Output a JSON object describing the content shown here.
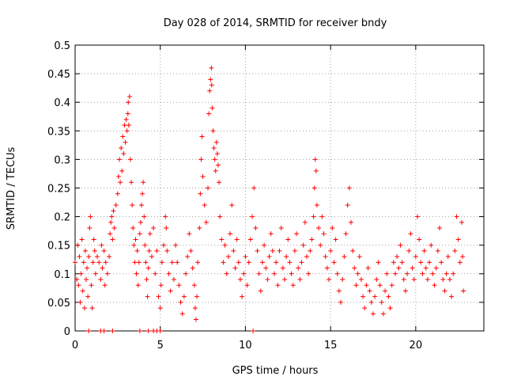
{
  "chart_data": {
    "type": "scatter",
    "title": "Day 028 of 2014, SRMTID for receiver bndy",
    "xlabel": "GPS time / hours",
    "ylabel": "SRMTID / TECUs",
    "xlim": [
      0,
      24
    ],
    "ylim": [
      0,
      0.5
    ],
    "x_ticks": [
      0,
      5,
      10,
      15,
      20
    ],
    "x_tick_labels": [
      "0",
      "5",
      "10",
      "15",
      "20"
    ],
    "y_ticks": [
      0,
      0.05,
      0.1,
      0.15,
      0.2,
      0.25,
      0.3,
      0.35,
      0.4,
      0.45,
      0.5
    ],
    "y_tick_labels": [
      "0",
      "0.05",
      "0.1",
      "0.15",
      "0.2",
      "0.25",
      "0.3",
      "0.35",
      "0.4",
      "0.45",
      "0.5"
    ],
    "grid": true,
    "marker": "plus",
    "series": [
      {
        "name": "SRMTID",
        "color": "#ff0000",
        "points": [
          [
            0.0,
            0.12
          ],
          [
            0.1,
            0.09
          ],
          [
            0.15,
            0.15
          ],
          [
            0.2,
            0.08
          ],
          [
            0.25,
            0.13
          ],
          [
            0.3,
            0.05
          ],
          [
            0.35,
            0.1
          ],
          [
            0.4,
            0.16
          ],
          [
            0.45,
            0.07
          ],
          [
            0.5,
            0.12
          ],
          [
            0.55,
            0.04
          ],
          [
            0.6,
            0.14
          ],
          [
            0.65,
            0.09
          ],
          [
            0.7,
            0.11
          ],
          [
            0.75,
            0.06
          ],
          [
            0.8,
            0.13
          ],
          [
            0.85,
            0.18
          ],
          [
            0.9,
            0.2
          ],
          [
            0.95,
            0.08
          ],
          [
            1.0,
            0.04
          ],
          [
            1.05,
            0.12
          ],
          [
            1.1,
            0.16
          ],
          [
            1.15,
            0.14
          ],
          [
            1.2,
            0.1
          ],
          [
            1.3,
            0.13
          ],
          [
            1.4,
            0.12
          ],
          [
            1.5,
            0.09
          ],
          [
            1.55,
            0.15
          ],
          [
            1.6,
            0.11
          ],
          [
            1.7,
            0.14
          ],
          [
            1.75,
            0.08
          ],
          [
            1.8,
            0.12
          ],
          [
            1.9,
            0.1
          ],
          [
            2.0,
            0.13
          ],
          [
            2.05,
            0.17
          ],
          [
            2.1,
            0.19
          ],
          [
            2.15,
            0.2
          ],
          [
            2.2,
            0.16
          ],
          [
            2.25,
            0.21
          ],
          [
            2.3,
            0.18
          ],
          [
            2.4,
            0.22
          ],
          [
            2.5,
            0.24
          ],
          [
            2.55,
            0.27
          ],
          [
            2.6,
            0.3
          ],
          [
            2.65,
            0.26
          ],
          [
            2.7,
            0.32
          ],
          [
            2.75,
            0.28
          ],
          [
            2.8,
            0.34
          ],
          [
            2.85,
            0.31
          ],
          [
            2.9,
            0.36
          ],
          [
            2.95,
            0.33
          ],
          [
            3.0,
            0.37
          ],
          [
            3.05,
            0.35
          ],
          [
            3.1,
            0.38
          ],
          [
            3.12,
            0.4
          ],
          [
            3.15,
            0.36
          ],
          [
            3.2,
            0.41
          ],
          [
            3.25,
            0.3
          ],
          [
            3.3,
            0.26
          ],
          [
            3.35,
            0.22
          ],
          [
            3.4,
            0.18
          ],
          [
            3.45,
            0.15
          ],
          [
            3.5,
            0.12
          ],
          [
            3.55,
            0.16
          ],
          [
            3.6,
            0.1
          ],
          [
            3.65,
            0.14
          ],
          [
            3.7,
            0.08
          ],
          [
            3.75,
            0.12
          ],
          [
            3.8,
            0.17
          ],
          [
            3.85,
            0.19
          ],
          [
            3.9,
            0.22
          ],
          [
            3.95,
            0.24
          ],
          [
            4.0,
            0.26
          ],
          [
            4.05,
            0.2
          ],
          [
            4.1,
            0.15
          ],
          [
            4.15,
            0.12
          ],
          [
            4.2,
            0.09
          ],
          [
            4.25,
            0.06
          ],
          [
            4.3,
            0.11
          ],
          [
            4.35,
            0.14
          ],
          [
            4.4,
            0.17
          ],
          [
            4.5,
            0.13
          ],
          [
            4.6,
            0.18
          ],
          [
            4.7,
            0.1
          ],
          [
            4.8,
            0.14
          ],
          [
            4.9,
            0.06
          ],
          [
            5.0,
            0.04
          ],
          [
            5.05,
            0.08
          ],
          [
            5.1,
            0.12
          ],
          [
            5.2,
            0.15
          ],
          [
            5.3,
            0.2
          ],
          [
            5.35,
            0.18
          ],
          [
            5.4,
            0.14
          ],
          [
            5.5,
            0.1
          ],
          [
            5.6,
            0.07
          ],
          [
            5.7,
            0.12
          ],
          [
            5.8,
            0.09
          ],
          [
            5.9,
            0.15
          ],
          [
            6.0,
            0.12
          ],
          [
            6.1,
            0.08
          ],
          [
            6.2,
            0.05
          ],
          [
            6.3,
            0.03
          ],
          [
            6.4,
            0.06
          ],
          [
            6.5,
            0.1
          ],
          [
            6.6,
            0.13
          ],
          [
            6.7,
            0.17
          ],
          [
            6.8,
            0.14
          ],
          [
            6.9,
            0.11
          ],
          [
            7.0,
            0.08
          ],
          [
            7.05,
            0.04
          ],
          [
            7.1,
            0.02
          ],
          [
            7.15,
            0.06
          ],
          [
            7.2,
            0.12
          ],
          [
            7.3,
            0.18
          ],
          [
            7.35,
            0.24
          ],
          [
            7.4,
            0.3
          ],
          [
            7.45,
            0.34
          ],
          [
            7.5,
            0.27
          ],
          [
            7.6,
            0.22
          ],
          [
            7.7,
            0.19
          ],
          [
            7.8,
            0.25
          ],
          [
            7.85,
            0.38
          ],
          [
            7.9,
            0.42
          ],
          [
            7.95,
            0.44
          ],
          [
            8.0,
            0.46
          ],
          [
            8.02,
            0.43
          ],
          [
            8.05,
            0.39
          ],
          [
            8.1,
            0.35
          ],
          [
            8.15,
            0.32
          ],
          [
            8.2,
            0.3
          ],
          [
            8.25,
            0.28
          ],
          [
            8.3,
            0.33
          ],
          [
            8.35,
            0.31
          ],
          [
            8.4,
            0.29
          ],
          [
            8.45,
            0.26
          ],
          [
            8.5,
            0.2
          ],
          [
            8.6,
            0.16
          ],
          [
            8.7,
            0.12
          ],
          [
            8.8,
            0.15
          ],
          [
            8.9,
            0.1
          ],
          [
            9.0,
            0.13
          ],
          [
            9.1,
            0.17
          ],
          [
            9.2,
            0.22
          ],
          [
            9.3,
            0.14
          ],
          [
            9.4,
            0.11
          ],
          [
            9.5,
            0.16
          ],
          [
            9.6,
            0.12
          ],
          [
            9.7,
            0.09
          ],
          [
            9.8,
            0.06
          ],
          [
            9.9,
            0.1
          ],
          [
            10.0,
            0.13
          ],
          [
            10.1,
            0.08
          ],
          [
            10.2,
            0.12
          ],
          [
            10.3,
            0.16
          ],
          [
            10.4,
            0.2
          ],
          [
            10.5,
            0.25
          ],
          [
            10.6,
            0.18
          ],
          [
            10.7,
            0.14
          ],
          [
            10.8,
            0.1
          ],
          [
            10.9,
            0.07
          ],
          [
            11.0,
            0.12
          ],
          [
            11.1,
            0.15
          ],
          [
            11.2,
            0.11
          ],
          [
            11.3,
            0.09
          ],
          [
            11.4,
            0.13
          ],
          [
            11.5,
            0.17
          ],
          [
            11.6,
            0.14
          ],
          [
            11.7,
            0.1
          ],
          [
            11.8,
            0.12
          ],
          [
            11.9,
            0.08
          ],
          [
            12.0,
            0.14
          ],
          [
            12.1,
            0.18
          ],
          [
            12.2,
            0.11
          ],
          [
            12.3,
            0.09
          ],
          [
            12.4,
            0.13
          ],
          [
            12.5,
            0.16
          ],
          [
            12.6,
            0.12
          ],
          [
            12.7,
            0.1
          ],
          [
            12.8,
            0.08
          ],
          [
            12.9,
            0.14
          ],
          [
            13.0,
            0.17
          ],
          [
            13.1,
            0.11
          ],
          [
            13.2,
            0.09
          ],
          [
            13.3,
            0.12
          ],
          [
            13.4,
            0.15
          ],
          [
            13.5,
            0.19
          ],
          [
            13.6,
            0.13
          ],
          [
            13.7,
            0.1
          ],
          [
            13.8,
            0.14
          ],
          [
            13.9,
            0.16
          ],
          [
            14.0,
            0.2
          ],
          [
            14.05,
            0.25
          ],
          [
            14.1,
            0.3
          ],
          [
            14.15,
            0.28
          ],
          [
            14.2,
            0.22
          ],
          [
            14.3,
            0.18
          ],
          [
            14.4,
            0.15
          ],
          [
            14.5,
            0.2
          ],
          [
            14.6,
            0.17
          ],
          [
            14.7,
            0.13
          ],
          [
            14.8,
            0.11
          ],
          [
            14.9,
            0.09
          ],
          [
            15.0,
            0.14
          ],
          [
            15.1,
            0.18
          ],
          [
            15.2,
            0.12
          ],
          [
            15.3,
            0.16
          ],
          [
            15.4,
            0.1
          ],
          [
            15.5,
            0.07
          ],
          [
            15.6,
            0.05
          ],
          [
            15.7,
            0.09
          ],
          [
            15.8,
            0.13
          ],
          [
            15.9,
            0.17
          ],
          [
            16.0,
            0.22
          ],
          [
            16.1,
            0.25
          ],
          [
            16.2,
            0.19
          ],
          [
            16.3,
            0.14
          ],
          [
            16.4,
            0.11
          ],
          [
            16.5,
            0.08
          ],
          [
            16.6,
            0.1
          ],
          [
            16.7,
            0.13
          ],
          [
            16.8,
            0.09
          ],
          [
            16.9,
            0.06
          ],
          [
            17.0,
            0.04
          ],
          [
            17.1,
            0.08
          ],
          [
            17.2,
            0.11
          ],
          [
            17.3,
            0.07
          ],
          [
            17.4,
            0.05
          ],
          [
            17.5,
            0.03
          ],
          [
            17.6,
            0.06
          ],
          [
            17.7,
            0.09
          ],
          [
            17.8,
            0.12
          ],
          [
            17.9,
            0.08
          ],
          [
            18.0,
            0.05
          ],
          [
            18.1,
            0.03
          ],
          [
            18.2,
            0.07
          ],
          [
            18.3,
            0.1
          ],
          [
            18.4,
            0.06
          ],
          [
            18.5,
            0.04
          ],
          [
            18.6,
            0.08
          ],
          [
            18.7,
            0.12
          ],
          [
            18.8,
            0.1
          ],
          [
            18.9,
            0.13
          ],
          [
            19.0,
            0.11
          ],
          [
            19.1,
            0.15
          ],
          [
            19.2,
            0.12
          ],
          [
            19.3,
            0.09
          ],
          [
            19.4,
            0.07
          ],
          [
            19.5,
            0.1
          ],
          [
            19.6,
            0.14
          ],
          [
            19.7,
            0.17
          ],
          [
            19.8,
            0.11
          ],
          [
            19.9,
            0.09
          ],
          [
            20.0,
            0.13
          ],
          [
            20.1,
            0.2
          ],
          [
            20.2,
            0.16
          ],
          [
            20.3,
            0.12
          ],
          [
            20.4,
            0.1
          ],
          [
            20.5,
            0.14
          ],
          [
            20.6,
            0.11
          ],
          [
            20.7,
            0.09
          ],
          [
            20.8,
            0.12
          ],
          [
            20.9,
            0.15
          ],
          [
            21.0,
            0.1
          ],
          [
            21.1,
            0.08
          ],
          [
            21.2,
            0.11
          ],
          [
            21.3,
            0.14
          ],
          [
            21.4,
            0.18
          ],
          [
            21.5,
            0.12
          ],
          [
            21.6,
            0.09
          ],
          [
            21.7,
            0.07
          ],
          [
            21.8,
            0.1
          ],
          [
            21.9,
            0.13
          ],
          [
            22.0,
            0.09
          ],
          [
            22.1,
            0.06
          ],
          [
            22.2,
            0.1
          ],
          [
            22.3,
            0.14
          ],
          [
            22.4,
            0.2
          ],
          [
            22.5,
            0.16
          ],
          [
            22.6,
            0.12
          ],
          [
            22.7,
            0.19
          ],
          [
            22.75,
            0.13
          ],
          [
            22.8,
            0.07
          ],
          [
            0.8,
            0.0
          ],
          [
            1.5,
            0.0
          ],
          [
            1.7,
            0.0
          ],
          [
            2.2,
            0.0
          ],
          [
            3.8,
            0.0
          ],
          [
            4.3,
            0.0
          ],
          [
            4.6,
            0.0
          ],
          [
            4.8,
            0.0
          ],
          [
            5.0,
            0.0
          ],
          [
            10.45,
            0.0
          ]
        ]
      }
    ]
  }
}
